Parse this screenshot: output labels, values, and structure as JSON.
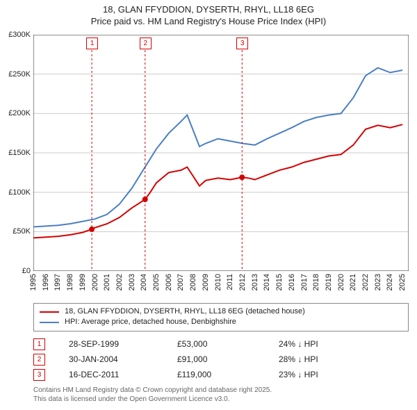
{
  "titles": {
    "line1": "18, GLAN FFYDDION, DYSERTH, RHYL, LL18 6EG",
    "line2": "Price paid vs. HM Land Registry's House Price Index (HPI)"
  },
  "chart": {
    "type": "line",
    "background_color": "#ffffff",
    "grid_color": "#cccccc",
    "axis_color": "#222222",
    "x": {
      "min": 1995,
      "max": 2025.5,
      "ticks": [
        1995,
        1996,
        1997,
        1998,
        1999,
        2000,
        2001,
        2002,
        2003,
        2004,
        2005,
        2006,
        2007,
        2008,
        2009,
        2010,
        2011,
        2012,
        2013,
        2014,
        2015,
        2016,
        2017,
        2018,
        2019,
        2020,
        2021,
        2022,
        2023,
        2024,
        2025
      ]
    },
    "y": {
      "min": 0,
      "max": 300000,
      "ticks": [
        0,
        50000,
        100000,
        150000,
        200000,
        250000,
        300000
      ],
      "tick_labels": [
        "£0",
        "£50K",
        "£100K",
        "£150K",
        "£200K",
        "£250K",
        "£300K"
      ]
    },
    "series": [
      {
        "id": "price_paid",
        "label": "18, GLAN FFYDDION, DYSERTH, RHYL, LL18 6EG (detached house)",
        "color": "#d40000",
        "line_width": 2,
        "points": [
          [
            1995,
            42000
          ],
          [
            1996,
            43000
          ],
          [
            1997,
            44000
          ],
          [
            1998,
            46000
          ],
          [
            1999,
            49000
          ],
          [
            1999.75,
            53000
          ],
          [
            2000,
            55000
          ],
          [
            2001,
            60000
          ],
          [
            2002,
            68000
          ],
          [
            2003,
            80000
          ],
          [
            2004.08,
            91000
          ],
          [
            2004.5,
            100000
          ],
          [
            2005,
            112000
          ],
          [
            2006,
            125000
          ],
          [
            2007,
            128000
          ],
          [
            2007.5,
            132000
          ],
          [
            2008,
            120000
          ],
          [
            2008.5,
            108000
          ],
          [
            2009,
            115000
          ],
          [
            2010,
            118000
          ],
          [
            2011,
            116000
          ],
          [
            2011.96,
            119000
          ],
          [
            2012.5,
            118000
          ],
          [
            2013,
            116000
          ],
          [
            2014,
            122000
          ],
          [
            2015,
            128000
          ],
          [
            2016,
            132000
          ],
          [
            2017,
            138000
          ],
          [
            2018,
            142000
          ],
          [
            2019,
            146000
          ],
          [
            2020,
            148000
          ],
          [
            2021,
            160000
          ],
          [
            2022,
            180000
          ],
          [
            2023,
            185000
          ],
          [
            2024,
            182000
          ],
          [
            2025,
            186000
          ]
        ]
      },
      {
        "id": "hpi",
        "label": "HPI: Average price, detached house, Denbighshire",
        "color": "#4a7fc4",
        "line_width": 2,
        "points": [
          [
            1995,
            56000
          ],
          [
            1996,
            57000
          ],
          [
            1997,
            58000
          ],
          [
            1998,
            60000
          ],
          [
            1999,
            63000
          ],
          [
            2000,
            66000
          ],
          [
            2001,
            72000
          ],
          [
            2002,
            85000
          ],
          [
            2003,
            105000
          ],
          [
            2004,
            130000
          ],
          [
            2005,
            155000
          ],
          [
            2006,
            175000
          ],
          [
            2007,
            190000
          ],
          [
            2007.5,
            198000
          ],
          [
            2008,
            178000
          ],
          [
            2008.5,
            158000
          ],
          [
            2009,
            162000
          ],
          [
            2010,
            168000
          ],
          [
            2011,
            165000
          ],
          [
            2012,
            162000
          ],
          [
            2013,
            160000
          ],
          [
            2014,
            168000
          ],
          [
            2015,
            175000
          ],
          [
            2016,
            182000
          ],
          [
            2017,
            190000
          ],
          [
            2018,
            195000
          ],
          [
            2019,
            198000
          ],
          [
            2020,
            200000
          ],
          [
            2021,
            220000
          ],
          [
            2022,
            248000
          ],
          [
            2023,
            258000
          ],
          [
            2024,
            252000
          ],
          [
            2025,
            255000
          ]
        ]
      }
    ],
    "transaction_markers": [
      {
        "n": "1",
        "year": 1999.75,
        "price": 53000,
        "color": "#d40000"
      },
      {
        "n": "2",
        "year": 2004.08,
        "price": 91000,
        "color": "#d40000"
      },
      {
        "n": "3",
        "year": 2011.96,
        "price": 119000,
        "color": "#d40000"
      }
    ]
  },
  "legend": {
    "items": [
      {
        "color": "#d40000",
        "text": "18, GLAN FFYDDION, DYSERTH, RHYL, LL18 6EG (detached house)"
      },
      {
        "color": "#4a7fc4",
        "text": "HPI: Average price, detached house, Denbighshire"
      }
    ]
  },
  "transactions": {
    "rows": [
      {
        "n": "1",
        "date": "28-SEP-1999",
        "price": "£53,000",
        "delta": "24% ↓ HPI",
        "color": "#d40000"
      },
      {
        "n": "2",
        "date": "30-JAN-2004",
        "price": "£91,000",
        "delta": "28% ↓ HPI",
        "color": "#d40000"
      },
      {
        "n": "3",
        "date": "16-DEC-2011",
        "price": "£119,000",
        "delta": "23% ↓ HPI",
        "color": "#d40000"
      }
    ]
  },
  "footer": {
    "line1": "Contains HM Land Registry data © Crown copyright and database right 2025.",
    "line2": "This data is licensed under the Open Government Licence v3.0."
  }
}
